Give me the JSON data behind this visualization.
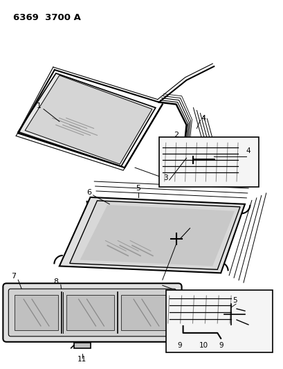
{
  "title": "6369  3700 A",
  "bg_color": "#ffffff",
  "lc": "#000000",
  "gray1": "#cccccc",
  "gray2": "#aaaaaa",
  "inset_bg": "#f0f0f0"
}
